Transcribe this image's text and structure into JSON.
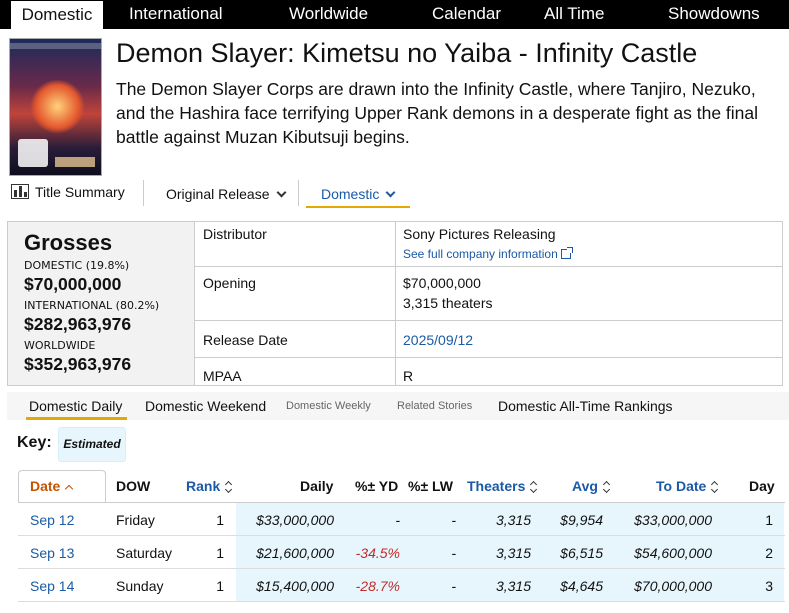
{
  "nav": {
    "items": [
      "Domestic",
      "International",
      "Worldwide",
      "Calendar",
      "All Time",
      "Showdowns"
    ],
    "active": "Domestic"
  },
  "movie": {
    "title": "Demon Slayer: Kimetsu no Yaiba - Infinity Castle",
    "description": "The Demon Slayer Corps are drawn into the Infinity Castle, where Tanjiro, Nezuko, and the Hashira face terrifying Upper Rank demons in a desperate fight as the final battle against Muzan Kibutsuji begins.",
    "poster_icon": "movie-poster"
  },
  "view_tabs": {
    "summary": "Title Summary",
    "release": "Original Release",
    "domestic": "Domestic"
  },
  "grosses": {
    "heading": "Grosses",
    "domestic_label": "DOMESTIC (19.8%)",
    "domestic_value": "$70,000,000",
    "international_label": "INTERNATIONAL (80.2%)",
    "international_value": "$282,963,976",
    "worldwide_label": "WORLDWIDE",
    "worldwide_value": "$352,963,976"
  },
  "summary": {
    "distributor_label": "Distributor",
    "distributor_value": "Sony Pictures Releasing",
    "company_link": "See full company information",
    "opening_label": "Opening",
    "opening_value": "$70,000,000",
    "opening_theaters": "3,315 theaters",
    "release_label": "Release Date",
    "release_value": "2025/09/12",
    "mpaa_label": "MPAA",
    "mpaa_value": "R"
  },
  "subtabs": {
    "daily": "Domestic Daily",
    "weekend": "Domestic Weekend",
    "weekly": "Domestic Weekly",
    "stories": "Related Stories",
    "rankings": "Domestic All-Time Rankings"
  },
  "key": {
    "label": "Key:",
    "estimated": "Estimated"
  },
  "table": {
    "headers": {
      "date": "Date",
      "dow": "DOW",
      "rank": "Rank",
      "daily": "Daily",
      "yd": "%± YD",
      "lw": "%± LW",
      "theaters": "Theaters",
      "avg": "Avg",
      "todate": "To Date",
      "day": "Day"
    },
    "rows": [
      {
        "date": "Sep 12",
        "dow": "Friday",
        "rank": "1",
        "daily": "$33,000,000",
        "yd": "-",
        "lw": "-",
        "theaters": "3,315",
        "avg": "$9,954",
        "todate": "$33,000,000",
        "day": "1"
      },
      {
        "date": "Sep 13",
        "dow": "Saturday",
        "rank": "1",
        "daily": "$21,600,000",
        "yd": "-34.5%",
        "lw": "-",
        "theaters": "3,315",
        "avg": "$6,515",
        "todate": "$54,600,000",
        "day": "2"
      },
      {
        "date": "Sep 14",
        "dow": "Sunday",
        "rank": "1",
        "daily": "$15,400,000",
        "yd": "-28.7%",
        "lw": "-",
        "theaters": "3,315",
        "avg": "$4,645",
        "todate": "$70,000,000",
        "day": "3"
      }
    ]
  },
  "colors": {
    "accent": "#e3a900",
    "link": "#1a5aa6",
    "estimated_bg": "#e6f6fc",
    "negative": "#c42b2b",
    "sorted": "#c45500"
  }
}
